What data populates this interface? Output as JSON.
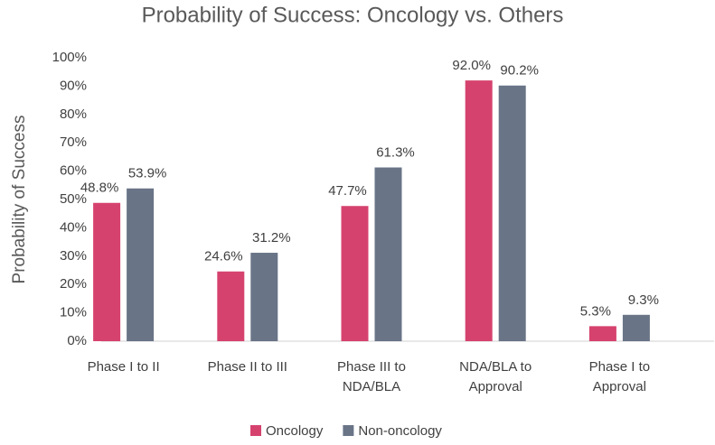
{
  "chart_data": {
    "type": "bar",
    "title": "Probability of Success: Oncology vs. Others",
    "y_label": "Probability of Success",
    "categories": [
      "Phase I to II",
      "Phase II to III",
      "Phase III to\nNDA/BLA",
      "NDA/BLA to\nApproval",
      "Phase I to\nApproval"
    ],
    "series": [
      {
        "name": "Oncology",
        "color": "#d6426e",
        "values": [
          48.8,
          24.6,
          47.7,
          92.0,
          5.3
        ],
        "value_labels": [
          "48.8%",
          "24.6%",
          "47.7%",
          "92.0%",
          "5.3%"
        ]
      },
      {
        "name": "Non-oncology",
        "color": "#697487",
        "values": [
          53.9,
          31.2,
          61.3,
          90.2,
          9.3
        ],
        "value_labels": [
          "53.9%",
          "31.2%",
          "61.3%",
          "90.2%",
          "9.3%"
        ]
      }
    ],
    "ylim": [
      0,
      100
    ],
    "yticks": [
      {
        "value": 0,
        "label": "0%"
      },
      {
        "value": 10,
        "label": "10%"
      },
      {
        "value": 20,
        "label": "20%"
      },
      {
        "value": 30,
        "label": "30%"
      },
      {
        "value": 40,
        "label": "40%"
      },
      {
        "value": 50,
        "label": "50%"
      },
      {
        "value": 60,
        "label": "60%"
      },
      {
        "value": 70,
        "label": "70%"
      },
      {
        "value": 80,
        "label": "80%"
      },
      {
        "value": 90,
        "label": "90%"
      },
      {
        "value": 100,
        "label": "100%"
      }
    ],
    "grid": false,
    "legend": "bottom"
  }
}
